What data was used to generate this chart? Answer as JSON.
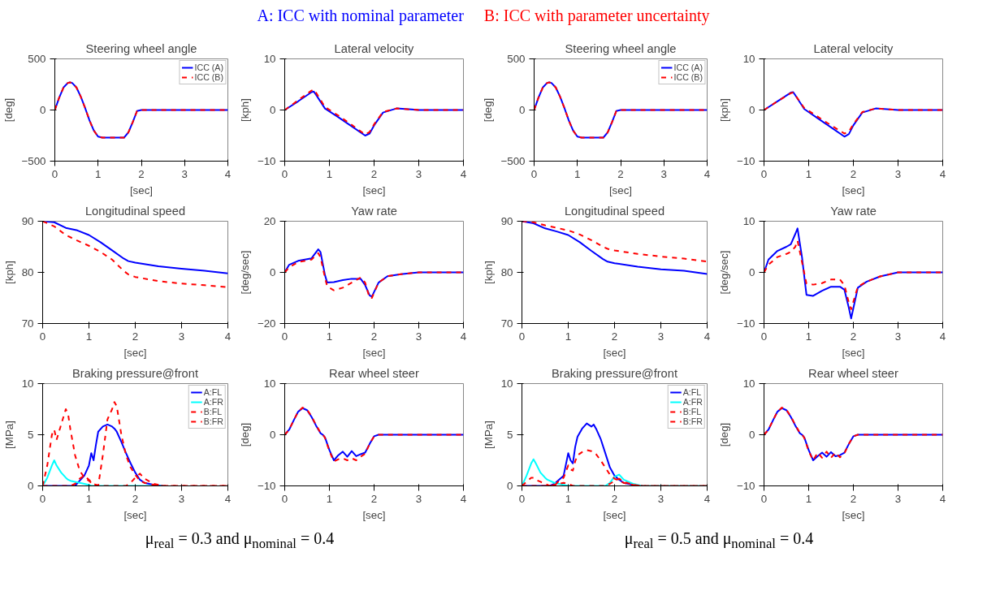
{
  "chart_data": [
    {
      "type": "line",
      "title": "Steering wheel angle",
      "xlabel": "[sec]",
      "ylabel": "[deg]",
      "annotations": [
        "A: ICC with nominal parameter",
        "B: ICC with parameter uncertainty",
        "μ$_{real}$ = 0.3 and  μ$_{nominal}$ = 0.4"
      ],
      "x": [
        0,
        0.1,
        0.2,
        0.3,
        0.35,
        0.4,
        0.5,
        0.6,
        0.7,
        0.8,
        0.9,
        1.0,
        1.1,
        1.6,
        1.7,
        1.8,
        1.9,
        2.0,
        4.0
      ],
      "xlim": [
        0,
        4
      ],
      "xticks": [
        0,
        1,
        2,
        3,
        4
      ],
      "ylim": [
        -500,
        500
      ],
      "yticks": [
        -500,
        0,
        500
      ],
      "grid": false,
      "legend": "top right",
      "series": [
        {
          "name": "ICC (A)",
          "color": "#0000ff",
          "line_style": "solid",
          "values": [
            0,
            120,
            220,
            265,
            270,
            265,
            220,
            130,
            20,
            -100,
            -200,
            -260,
            -270,
            -270,
            -220,
            -120,
            -10,
            0,
            0
          ]
        },
        {
          "name": "ICC (B)",
          "color": "#ff0000",
          "line_style": "dashed",
          "values": [
            0,
            120,
            220,
            265,
            270,
            265,
            220,
            130,
            20,
            -100,
            -200,
            -260,
            -270,
            -270,
            -220,
            -120,
            -10,
            0,
            0
          ]
        }
      ]
    },
    {
      "type": "line",
      "title": "Lateral velocity",
      "xlabel": "[sec]",
      "ylabel": "[kph]",
      "x": [
        0,
        0.3,
        0.6,
        0.65,
        0.7,
        0.9,
        1.2,
        1.5,
        1.8,
        1.9,
        2.0,
        2.2,
        2.5,
        3.0,
        4.0
      ],
      "xlim": [
        0,
        4
      ],
      "xticks": [
        0,
        1,
        2,
        3,
        4
      ],
      "ylim": [
        -10,
        10
      ],
      "yticks": [
        -10,
        0,
        10
      ],
      "grid": false,
      "series": [
        {
          "color": "#0000ff",
          "line_style": "solid",
          "values": [
            0,
            1.7,
            3.5,
            3.6,
            3,
            0.3,
            -1.4,
            -3.2,
            -5,
            -4.6,
            -3,
            -0.5,
            0.3,
            0,
            0
          ]
        },
        {
          "color": "#ff0000",
          "line_style": "dashed",
          "values": [
            0,
            1.9,
            3.8,
            4,
            3.4,
            0.6,
            -1.1,
            -2.9,
            -4.8,
            -4.3,
            -2.8,
            -0.4,
            0.3,
            0,
            0
          ]
        }
      ]
    },
    {
      "type": "line",
      "title": "Longitudinal speed",
      "xlabel": "[sec]",
      "ylabel": "[kph]",
      "x": [
        0,
        0.25,
        0.5,
        0.75,
        1.0,
        1.25,
        1.5,
        1.75,
        1.85,
        2.0,
        2.5,
        3.0,
        3.5,
        4.0
      ],
      "xlim": [
        0,
        4
      ],
      "xticks": [
        0,
        1,
        2,
        3,
        4
      ],
      "ylim": [
        70,
        90
      ],
      "yticks": [
        70,
        80,
        90
      ],
      "grid": false,
      "series": [
        {
          "color": "#0000ff",
          "line_style": "solid",
          "values": [
            90,
            89.8,
            88.7,
            88.2,
            87.3,
            85.9,
            84.3,
            82.7,
            82.2,
            81.9,
            81.2,
            80.7,
            80.3,
            79.8
          ]
        },
        {
          "color": "#ff0000",
          "line_style": "dashed",
          "values": [
            90,
            89,
            87.3,
            86.2,
            85.2,
            84,
            82.5,
            80.3,
            79.6,
            79.1,
            78.3,
            77.8,
            77.5,
            77.1
          ]
        }
      ]
    },
    {
      "type": "line",
      "title": "Yaw rate",
      "xlabel": "[sec]",
      "ylabel": "[deg/sec]",
      "x": [
        0,
        0.1,
        0.3,
        0.6,
        0.75,
        0.8,
        0.9,
        0.95,
        1.1,
        1.3,
        1.5,
        1.7,
        1.8,
        1.9,
        1.95,
        2.1,
        2.3,
        2.6,
        3.0,
        4.0
      ],
      "xlim": [
        0,
        4
      ],
      "xticks": [
        0,
        1,
        2,
        3,
        4
      ],
      "ylim": [
        -20,
        20
      ],
      "yticks": [
        -20,
        0,
        20
      ],
      "grid": false,
      "series": [
        {
          "color": "#0000ff",
          "line_style": "solid",
          "values": [
            0,
            3,
            4.5,
            5.5,
            9,
            8,
            -1,
            -4,
            -3.8,
            -3,
            -2.5,
            -2.5,
            -5,
            -9,
            -9.5,
            -4,
            -1.5,
            -0.7,
            0,
            0
          ]
        },
        {
          "color": "#ff0000",
          "line_style": "dashed",
          "values": [
            0,
            2,
            4,
            5,
            7.5,
            6,
            -2,
            -5.5,
            -7,
            -6,
            -4,
            -2,
            -4,
            -10,
            -10,
            -4,
            -1.5,
            -0.7,
            0,
            0
          ]
        }
      ]
    },
    {
      "type": "line",
      "title": "Braking pressure@front",
      "xlabel": "[sec]",
      "ylabel": "[MPa]",
      "x": [
        0,
        0.1,
        0.2,
        0.25,
        0.3,
        0.4,
        0.5,
        0.55,
        0.6,
        0.7,
        0.8,
        0.9,
        1.0,
        1.05,
        1.1,
        1.15,
        1.2,
        1.3,
        1.4,
        1.5,
        1.55,
        1.6,
        1.7,
        1.8,
        1.9,
        2.0,
        2.1,
        2.2,
        2.4,
        2.6,
        3.0,
        4.0
      ],
      "xlim": [
        0,
        4
      ],
      "xticks": [
        0,
        1,
        2,
        3,
        4
      ],
      "ylim": [
        0,
        10
      ],
      "yticks": [
        0,
        5,
        10
      ],
      "grid": false,
      "legend": "top right",
      "series": [
        {
          "name": "A:FL",
          "color": "#0000ff",
          "line_style": "solid",
          "values": [
            0,
            0,
            0,
            0,
            0,
            0,
            0,
            0,
            0,
            0,
            0.5,
            1,
            2,
            3.2,
            2.5,
            4,
            5.3,
            5.8,
            6,
            5.8,
            5.6,
            5.3,
            4.3,
            3.2,
            2.2,
            1.3,
            0.6,
            0.3,
            0.1,
            0,
            null,
            null
          ]
        },
        {
          "name": "A:FR",
          "color": "#00ffff",
          "line_style": "solid",
          "values": [
            0,
            0.8,
            2,
            2.5,
            2,
            1.3,
            0.8,
            0.6,
            0.5,
            0.4,
            0.3,
            0.2,
            0.1,
            0,
            0,
            0,
            0,
            0,
            0,
            0,
            0,
            0,
            0,
            0,
            0,
            0,
            0,
            0,
            0,
            0,
            null,
            null
          ]
        },
        {
          "name": "B:FL",
          "color": "#ff0000",
          "line_style": "dashed",
          "values": [
            0,
            2,
            5,
            5.5,
            4.5,
            6,
            7.5,
            7,
            5.5,
            3,
            1.5,
            0.8,
            0.5,
            0.3,
            0.2,
            0.1,
            0,
            3,
            6.5,
            7.5,
            8.2,
            7.8,
            5,
            3,
            1.8,
            1.1,
            0.5,
            0.3,
            0.1,
            0,
            0,
            0
          ]
        },
        {
          "name": "B:FR",
          "color": "#ff0000",
          "line_style": "dashed",
          "values": [
            0,
            0,
            0,
            0,
            0,
            0,
            0,
            0,
            0,
            0.2,
            0.7,
            1,
            0.6,
            0.4,
            0.2,
            0.1,
            0,
            0,
            0,
            0,
            0,
            0,
            0,
            0,
            0.3,
            0.8,
            1.2,
            0.7,
            0.2,
            0,
            0,
            0
          ]
        }
      ]
    },
    {
      "type": "line",
      "title": "Rear wheel steer",
      "xlabel": "[sec]",
      "ylabel": "[deg]",
      "x": [
        0,
        0.1,
        0.2,
        0.3,
        0.4,
        0.5,
        0.6,
        0.7,
        0.8,
        0.85,
        0.9,
        1.0,
        1.1,
        1.2,
        1.3,
        1.4,
        1.5,
        1.6,
        1.7,
        1.8,
        1.9,
        2.0,
        2.1,
        4.0
      ],
      "xlim": [
        0,
        4
      ],
      "xticks": [
        0,
        1,
        2,
        3,
        4
      ],
      "ylim": [
        -10,
        10
      ],
      "yticks": [
        -10,
        0,
        10
      ],
      "grid": false,
      "series": [
        {
          "color": "#0000ff",
          "line_style": "solid",
          "values": [
            0,
            1,
            2.8,
            4.5,
            5.2,
            4.8,
            3.5,
            1.8,
            0.3,
            0,
            -0.5,
            -3,
            -5,
            -4,
            -3.3,
            -4.3,
            -3.2,
            -4.2,
            -3.8,
            -3.5,
            -1.8,
            -0.3,
            0,
            0
          ]
        },
        {
          "color": "#ff0000",
          "line_style": "dashed",
          "values": [
            0,
            1,
            2.8,
            4.5,
            5.3,
            4.9,
            3.6,
            1.9,
            0.4,
            0.1,
            -0.6,
            -3.2,
            -5.2,
            -4.8,
            -4.6,
            -5,
            -4.6,
            -5,
            -4.3,
            -3.7,
            -1.8,
            -0.3,
            0,
            0
          ]
        }
      ]
    },
    {
      "type": "line",
      "title": "Steering wheel angle",
      "xlabel": "[sec]",
      "ylabel": "[deg]",
      "annotations": [
        "μ$_{real}$ = 0.5 and  μ$_{nominal}$ = 0.4"
      ],
      "x": [
        0,
        0.1,
        0.2,
        0.3,
        0.35,
        0.4,
        0.5,
        0.6,
        0.7,
        0.8,
        0.9,
        1.0,
        1.1,
        1.6,
        1.7,
        1.8,
        1.9,
        2.0,
        4.0
      ],
      "xlim": [
        0,
        4
      ],
      "xticks": [
        0,
        1,
        2,
        3,
        4
      ],
      "ylim": [
        -500,
        500
      ],
      "yticks": [
        -500,
        0,
        500
      ],
      "grid": false,
      "legend": "top right",
      "series": [
        {
          "name": "ICC (A)",
          "color": "#0000ff",
          "line_style": "solid",
          "values": [
            0,
            120,
            220,
            265,
            270,
            265,
            220,
            130,
            20,
            -100,
            -200,
            -260,
            -270,
            -270,
            -220,
            -120,
            -10,
            0,
            0
          ]
        },
        {
          "name": "ICC (B)",
          "color": "#ff0000",
          "line_style": "dashed",
          "values": [
            0,
            120,
            220,
            265,
            270,
            265,
            220,
            130,
            20,
            -100,
            -200,
            -260,
            -270,
            -270,
            -220,
            -120,
            -10,
            0,
            0
          ]
        }
      ]
    },
    {
      "type": "line",
      "title": "Lateral velocity",
      "xlabel": "[sec]",
      "ylabel": "[kph]",
      "x": [
        0,
        0.3,
        0.6,
        0.65,
        0.7,
        0.9,
        1.2,
        1.5,
        1.8,
        1.9,
        2.0,
        2.2,
        2.5,
        3.0,
        4.0
      ],
      "xlim": [
        0,
        4
      ],
      "xticks": [
        0,
        1,
        2,
        3,
        4
      ],
      "ylim": [
        -10,
        10
      ],
      "yticks": [
        -10,
        0,
        10
      ],
      "grid": false,
      "series": [
        {
          "color": "#0000ff",
          "line_style": "solid",
          "values": [
            0,
            1.7,
            3.4,
            3.5,
            2.9,
            0.2,
            -1.6,
            -3.4,
            -5.2,
            -4.7,
            -3,
            -0.5,
            0.3,
            0,
            0
          ]
        },
        {
          "color": "#ff0000",
          "line_style": "dashed",
          "values": [
            0,
            1.7,
            3.3,
            3.4,
            2.9,
            0.4,
            -1.3,
            -3,
            -4.6,
            -4.2,
            -2.8,
            -0.4,
            0.3,
            0,
            0
          ]
        }
      ]
    },
    {
      "type": "line",
      "title": "Longitudinal speed",
      "xlabel": "[sec]",
      "ylabel": "[kph]",
      "x": [
        0,
        0.25,
        0.5,
        0.75,
        1.0,
        1.25,
        1.5,
        1.75,
        1.85,
        2.0,
        2.5,
        3.0,
        3.5,
        4.0
      ],
      "xlim": [
        0,
        4
      ],
      "xticks": [
        0,
        1,
        2,
        3,
        4
      ],
      "ylim": [
        70,
        90
      ],
      "yticks": [
        70,
        80,
        90
      ],
      "grid": false,
      "series": [
        {
          "color": "#0000ff",
          "line_style": "solid",
          "values": [
            90,
            89.6,
            88.6,
            88,
            87.3,
            85.9,
            84.2,
            82.6,
            82.1,
            81.8,
            81.1,
            80.6,
            80.3,
            79.7
          ]
        },
        {
          "color": "#ff0000",
          "line_style": "dashed",
          "values": [
            90,
            89.8,
            89.2,
            88.7,
            88.2,
            87.4,
            86.3,
            85,
            84.6,
            84.3,
            83.6,
            83.1,
            82.7,
            82.1
          ]
        }
      ]
    },
    {
      "type": "line",
      "title": "Yaw rate",
      "xlabel": "[sec]",
      "ylabel": "[deg/sec]",
      "x": [
        0,
        0.1,
        0.3,
        0.5,
        0.6,
        0.7,
        0.75,
        0.85,
        0.95,
        1.1,
        1.3,
        1.5,
        1.7,
        1.8,
        1.9,
        1.95,
        2.1,
        2.3,
        2.6,
        3.0,
        4.0
      ],
      "xlim": [
        0,
        4
      ],
      "xticks": [
        0,
        1,
        2,
        3,
        4
      ],
      "ylim": [
        -10,
        10
      ],
      "yticks": [
        -10,
        0,
        10
      ],
      "grid": false,
      "series": [
        {
          "color": "#0000ff",
          "line_style": "solid",
          "values": [
            0,
            2.5,
            4.2,
            5,
            5.5,
            7.5,
            8.6,
            3,
            -4.4,
            -4.6,
            -3.6,
            -2.8,
            -2.8,
            -3.4,
            -7,
            -9,
            -3,
            -1.8,
            -0.8,
            0,
            0
          ]
        },
        {
          "color": "#ff0000",
          "line_style": "dashed",
          "values": [
            0,
            1.5,
            3,
            3.6,
            4,
            5,
            6.2,
            2,
            -2.2,
            -2.4,
            -2.1,
            -1.4,
            -1.4,
            -2.5,
            -6,
            -7.2,
            -2.8,
            -1.8,
            -0.8,
            0,
            0
          ]
        }
      ]
    },
    {
      "type": "line",
      "title": "Braking pressure@front",
      "xlabel": "[sec]",
      "ylabel": "[MPa]",
      "x": [
        0,
        0.1,
        0.2,
        0.25,
        0.3,
        0.4,
        0.5,
        0.55,
        0.6,
        0.7,
        0.8,
        0.9,
        1.0,
        1.05,
        1.1,
        1.15,
        1.2,
        1.3,
        1.4,
        1.5,
        1.55,
        1.6,
        1.7,
        1.8,
        1.9,
        2.0,
        2.1,
        2.2,
        2.4,
        2.6,
        3.0,
        4.0
      ],
      "xlim": [
        0,
        4
      ],
      "xticks": [
        0,
        1,
        2,
        3,
        4
      ],
      "ylim": [
        0,
        10
      ],
      "yticks": [
        0,
        5,
        10
      ],
      "grid": false,
      "legend": "top right",
      "series": [
        {
          "name": "A:FL",
          "color": "#0000ff",
          "line_style": "solid",
          "values": [
            0,
            0,
            0,
            0,
            0,
            0,
            0,
            0,
            0,
            0.2,
            0.6,
            1,
            3.2,
            2.5,
            2.2,
            3.8,
            4.8,
            5.6,
            6.1,
            5.8,
            6,
            5.6,
            4.6,
            3.2,
            1.8,
            1,
            0.6,
            0.3,
            0.1,
            0,
            null,
            null
          ]
        },
        {
          "name": "A:FR",
          "color": "#00ffff",
          "line_style": "solid",
          "values": [
            0,
            1,
            2.2,
            2.6,
            2.2,
            1.3,
            0.8,
            0.6,
            0.5,
            0.3,
            0.2,
            0.1,
            0,
            0,
            0,
            0,
            0,
            0,
            0,
            0,
            0,
            0,
            0,
            0,
            0.3,
            0.9,
            1.1,
            0.6,
            0.2,
            0,
            0,
            0
          ]
        },
        {
          "name": "B:FL",
          "color": "#ff0000",
          "line_style": "dashed",
          "values": [
            0,
            0.4,
            0.8,
            0.8,
            0.6,
            0.4,
            0.2,
            0.1,
            0,
            0,
            0.5,
            0.8,
            2,
            1.6,
            1.5,
            2.4,
            3,
            3.3,
            3.5,
            3.4,
            3.3,
            3.1,
            2.5,
            1.8,
            1.1,
            0.7,
            0.5,
            0.3,
            0.1,
            0,
            0,
            0
          ]
        },
        {
          "name": "B:FR",
          "color": "#ff0000",
          "line_style": "dashed",
          "values": [
            0,
            0,
            0,
            0,
            0,
            0,
            0,
            0,
            0,
            0.1,
            0.2,
            0.3,
            0.2,
            0.1,
            0,
            0,
            0,
            0,
            0,
            0,
            0,
            0,
            0,
            0,
            0.2,
            0.5,
            0.7,
            0.4,
            0.1,
            0,
            0,
            0
          ]
        }
      ]
    },
    {
      "type": "line",
      "title": "Rear wheel steer",
      "xlabel": "[sec]",
      "ylabel": "[deg]",
      "x": [
        0,
        0.1,
        0.2,
        0.3,
        0.4,
        0.5,
        0.6,
        0.7,
        0.8,
        0.85,
        0.9,
        1.0,
        1.1,
        1.2,
        1.3,
        1.4,
        1.5,
        1.6,
        1.7,
        1.8,
        1.9,
        2.0,
        2.1,
        4.0
      ],
      "xlim": [
        0,
        4
      ],
      "xticks": [
        0,
        1,
        2,
        3,
        4
      ],
      "ylim": [
        -10,
        10
      ],
      "yticks": [
        -10,
        0,
        10
      ],
      "grid": false,
      "series": [
        {
          "color": "#0000ff",
          "line_style": "solid",
          "values": [
            0,
            1,
            2.8,
            4.5,
            5.2,
            4.8,
            3.5,
            1.8,
            0.3,
            0,
            -0.5,
            -3,
            -5,
            -4.2,
            -3.5,
            -4.3,
            -3.4,
            -4.2,
            -4,
            -3.5,
            -1.8,
            -0.3,
            0,
            0
          ]
        },
        {
          "color": "#ff0000",
          "line_style": "dashed",
          "values": [
            0,
            1,
            2.8,
            4.5,
            5.3,
            4.9,
            3.6,
            1.9,
            0.4,
            0.1,
            -0.6,
            -3.2,
            -5,
            -3.5,
            -4.5,
            -3.3,
            -4.5,
            -3.5,
            -4.4,
            -3.6,
            -1.8,
            -0.3,
            0,
            0
          ]
        }
      ]
    }
  ]
}
